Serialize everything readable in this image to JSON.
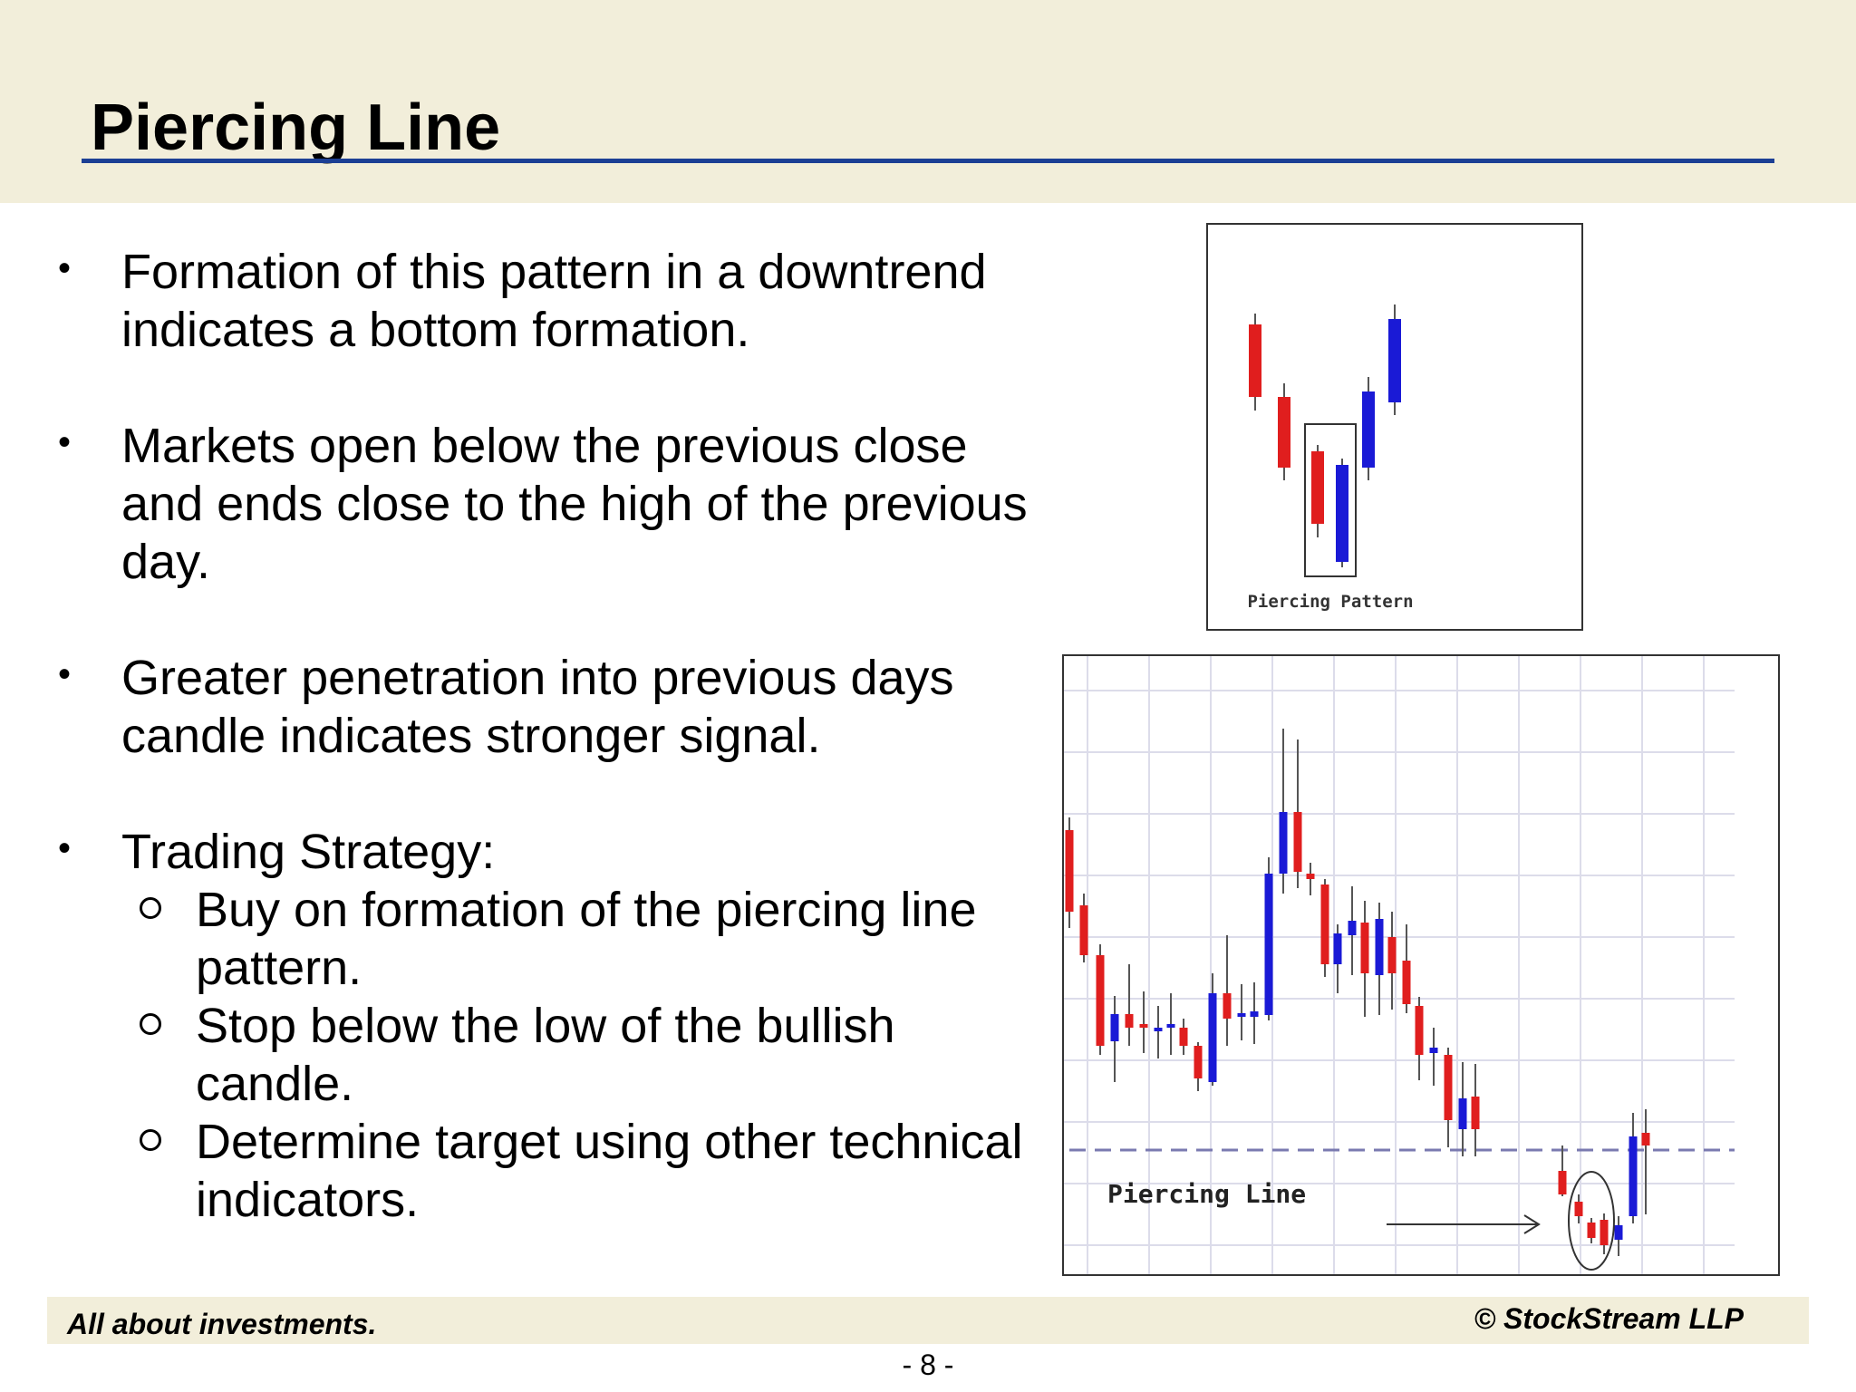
{
  "slide": {
    "title": "Piercing Line",
    "bullets": [
      "Formation of this pattern in a downtrend indicates a bottom formation.",
      "Markets open below the previous close and ends close to the high of the previous day.",
      "Greater penetration into previous days candle indicates stronger signal.",
      "Trading Strategy:"
    ],
    "sub_bullets": [
      "Buy on formation of the piercing line pattern.",
      "Stop below the low of the bullish candle.",
      "Determine target using other technical indicators."
    ]
  },
  "figures": {
    "pattern_label": "Piercing Pattern",
    "chart_label": "Piercing Line"
  },
  "colors": {
    "bearish": "#e01e1e",
    "bullish": "#1a1ad6",
    "title_rule": "#1c3f94",
    "band": "#f2eeda"
  },
  "footer": {
    "left": "All about investments.",
    "right": "© StockStream LLP",
    "page": "- 8 -"
  }
}
